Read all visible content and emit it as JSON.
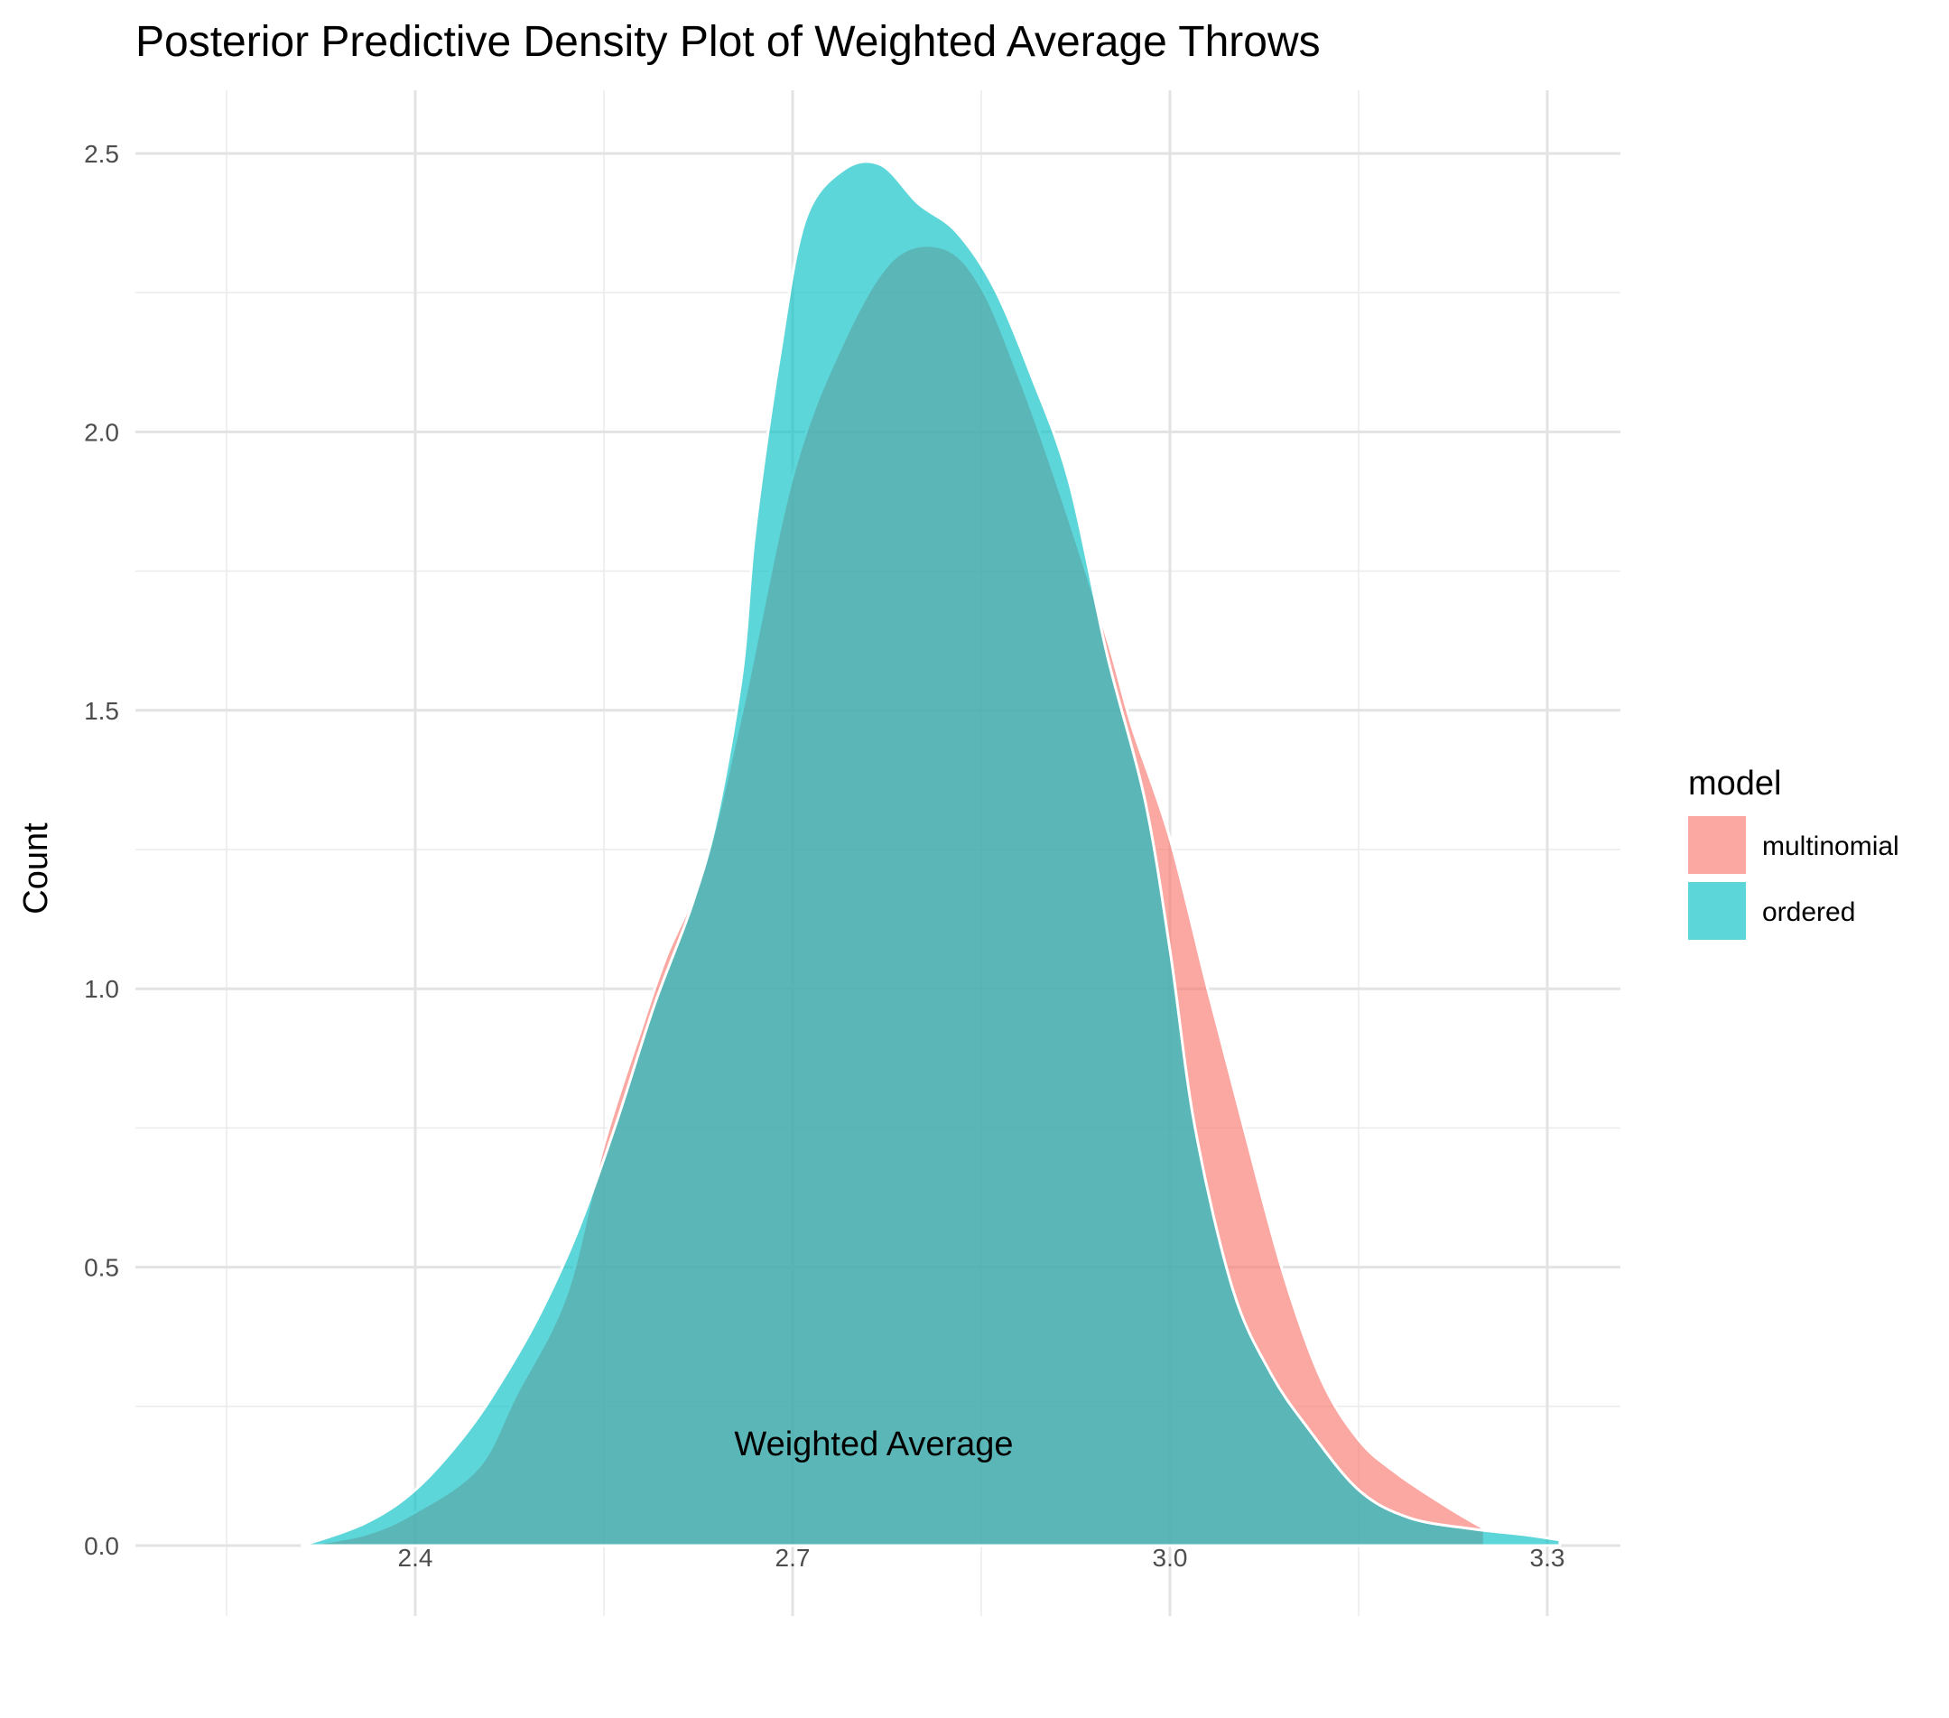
{
  "chart_data": {
    "type": "area",
    "title": "Posterior Predictive Density Plot of Weighted Average Throws",
    "xlabel": "Weighted Average",
    "ylabel": "Count",
    "xlim": [
      2.2,
      3.32
    ],
    "ylim": [
      -0.12,
      2.6
    ],
    "x_ticks": [
      2.4,
      2.7,
      3.0,
      3.3
    ],
    "x_tick_labels": [
      "2.4",
      "2.7",
      "3.0",
      "3.3"
    ],
    "y_ticks": [
      0,
      0.5,
      1.0,
      1.5,
      2.0,
      2.5
    ],
    "y_tick_labels": [
      "0.0",
      "0.5",
      "1.0",
      "1.5",
      "2.0",
      "2.5"
    ],
    "grid": true,
    "legend": {
      "title": "model",
      "position": "right"
    },
    "series": [
      {
        "name": "multinomial",
        "color": "#F8766D",
        "x": [
          2.31,
          2.36,
          2.4,
          2.45,
          2.48,
          2.52,
          2.55,
          2.58,
          2.6,
          2.63,
          2.66,
          2.7,
          2.74,
          2.78,
          2.82,
          2.85,
          2.88,
          2.91,
          2.95,
          2.97,
          3.0,
          3.03,
          3.06,
          3.09,
          3.12,
          3.15,
          3.18,
          3.22,
          3.25
        ],
        "y": [
          0.0,
          0.02,
          0.06,
          0.14,
          0.27,
          0.45,
          0.72,
          0.93,
          1.06,
          1.22,
          1.5,
          1.92,
          2.16,
          2.31,
          2.33,
          2.26,
          2.1,
          1.91,
          1.63,
          1.47,
          1.27,
          1.0,
          0.74,
          0.49,
          0.3,
          0.19,
          0.13,
          0.07,
          0.03
        ]
      },
      {
        "name": "ordered",
        "color": "#00BFC4",
        "x": [
          2.31,
          2.36,
          2.4,
          2.44,
          2.47,
          2.5,
          2.53,
          2.56,
          2.59,
          2.62,
          2.64,
          2.66,
          2.67,
          2.69,
          2.71,
          2.74,
          2.77,
          2.8,
          2.83,
          2.86,
          2.89,
          2.92,
          2.95,
          2.98,
          3.0,
          3.02,
          3.05,
          3.08,
          3.11,
          3.15,
          3.19,
          3.24,
          3.28,
          3.31
        ],
        "y": [
          0.0,
          0.04,
          0.1,
          0.2,
          0.3,
          0.42,
          0.57,
          0.76,
          0.97,
          1.15,
          1.31,
          1.57,
          1.82,
          2.14,
          2.38,
          2.47,
          2.48,
          2.41,
          2.36,
          2.26,
          2.1,
          1.91,
          1.6,
          1.34,
          1.07,
          0.75,
          0.46,
          0.31,
          0.21,
          0.1,
          0.05,
          0.03,
          0.02,
          0.01
        ]
      }
    ]
  }
}
